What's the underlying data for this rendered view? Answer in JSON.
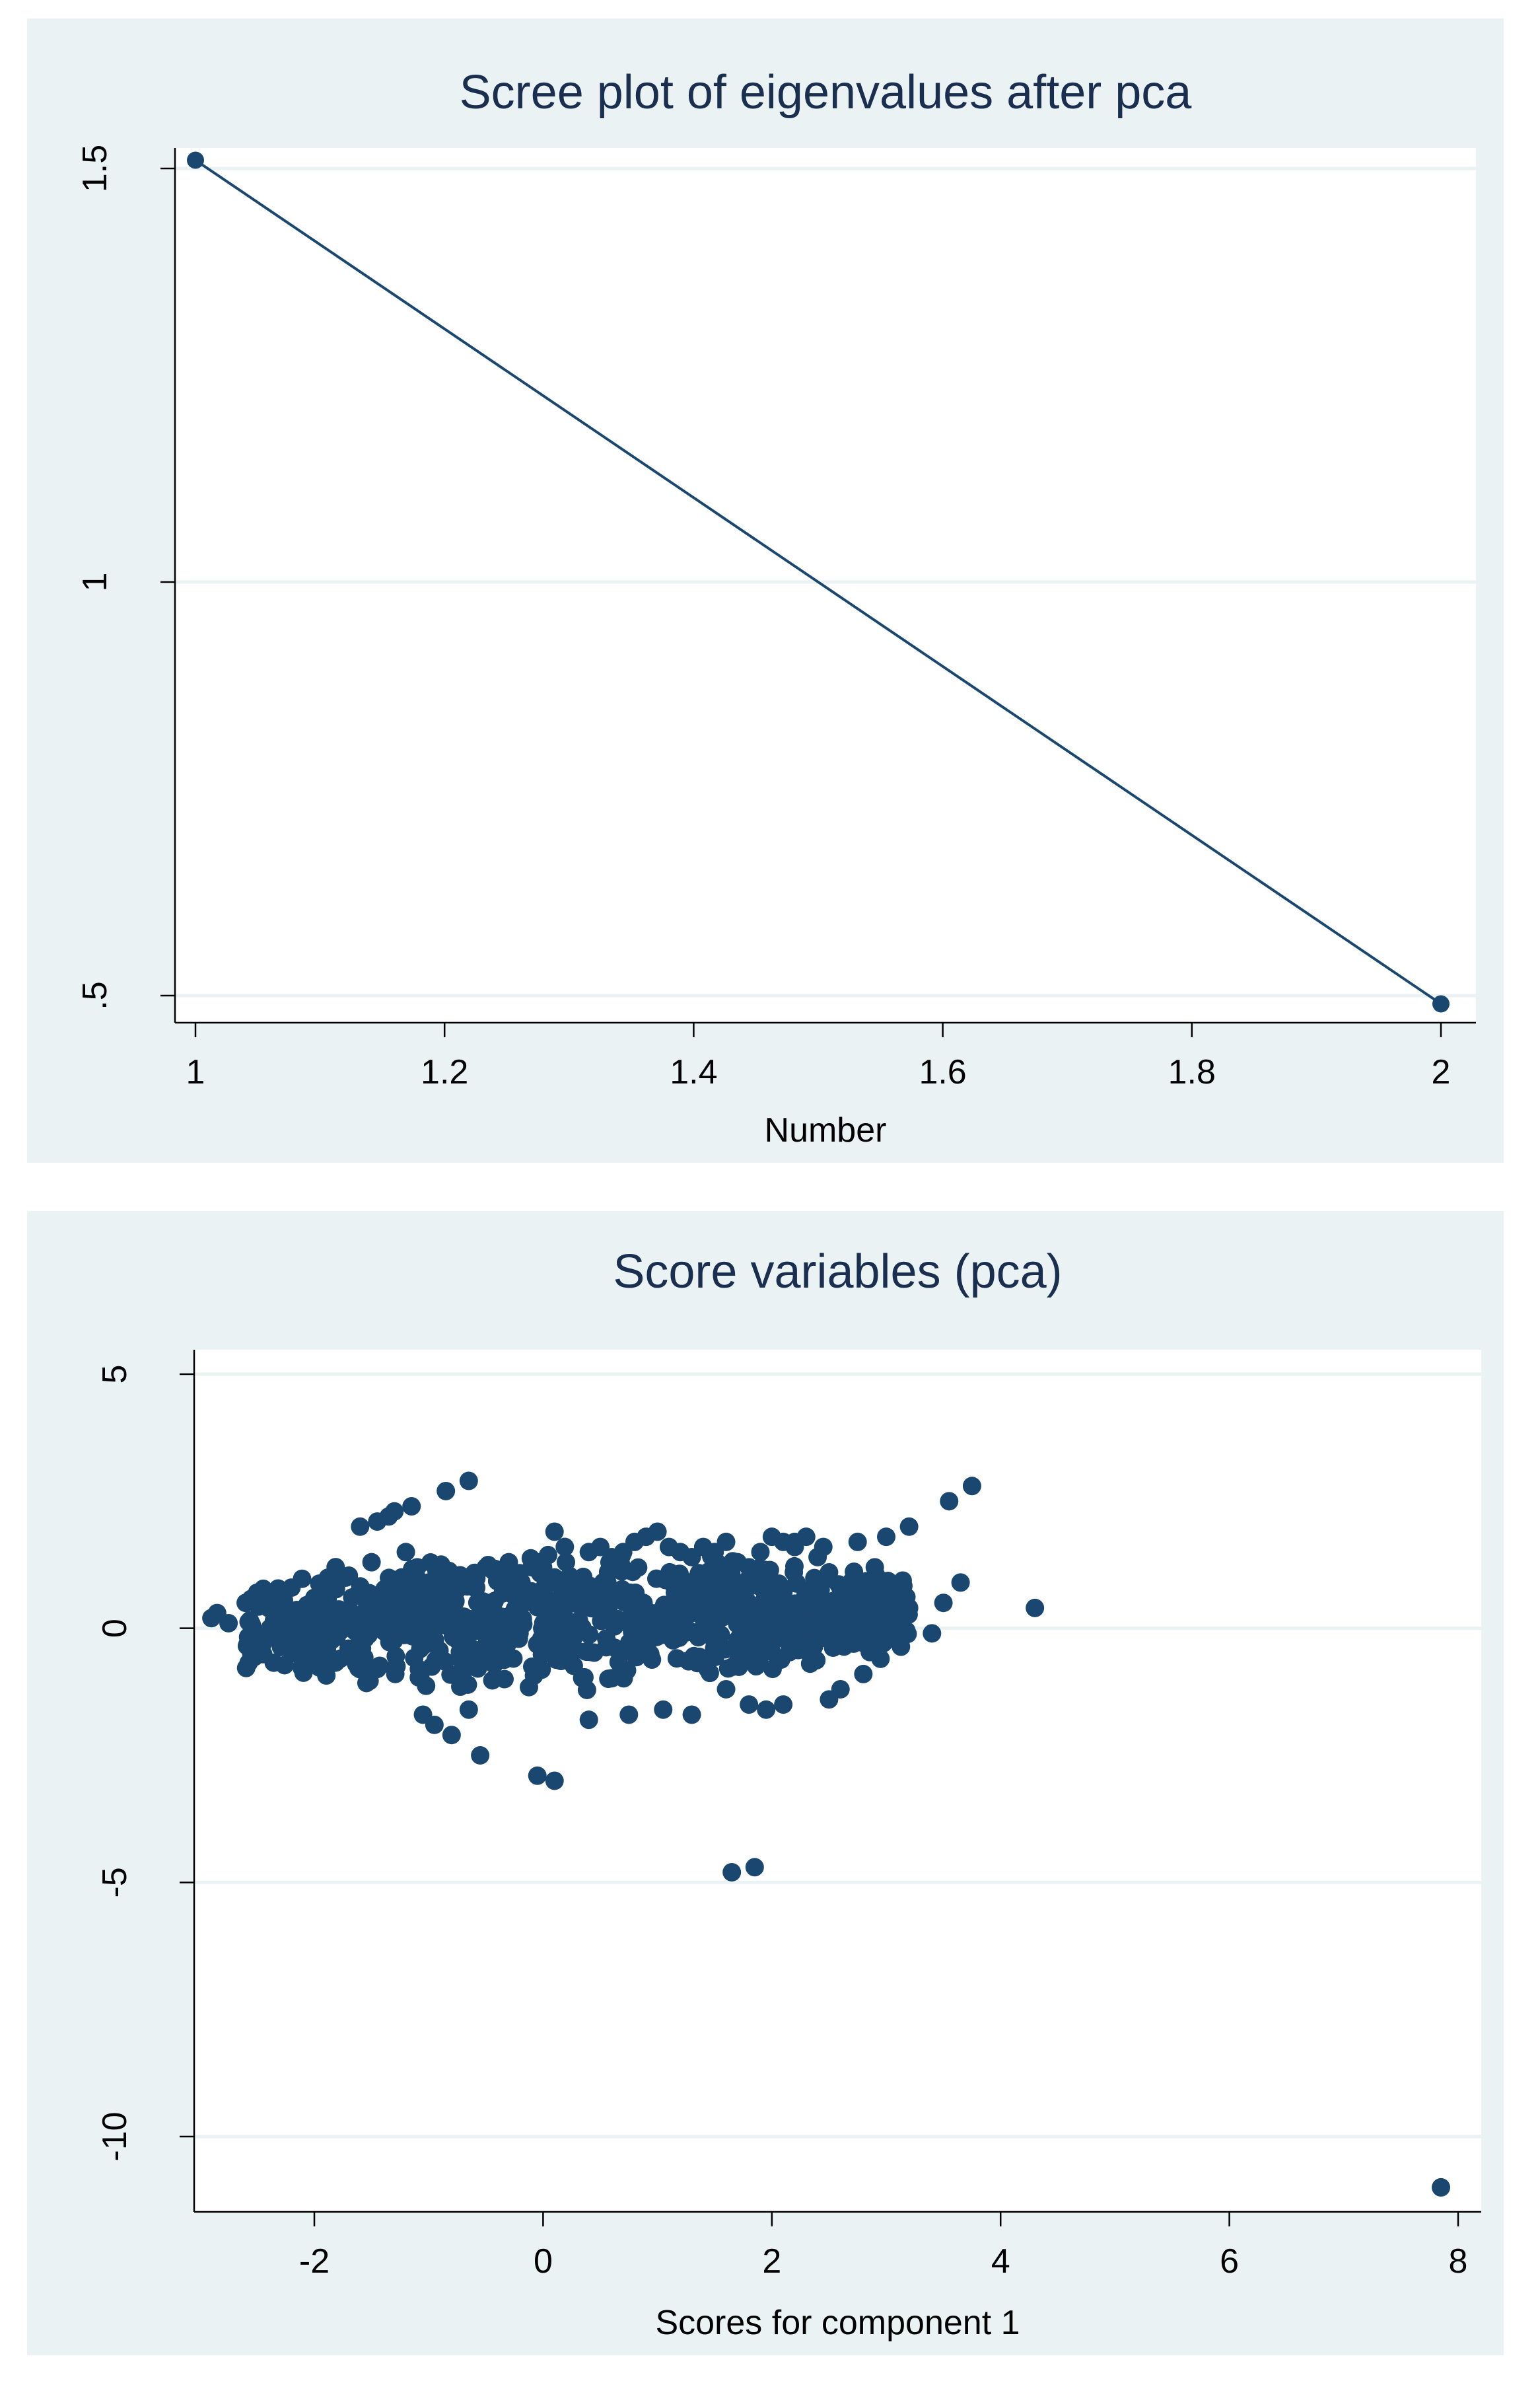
{
  "chart_data": [
    {
      "type": "line",
      "title": "Scree plot of eigenvalues after pca",
      "xlabel": "Number",
      "ylabel": "",
      "xlim": [
        1,
        2
      ],
      "ylim": [
        0.5,
        1.5
      ],
      "xticks": [
        "1",
        "1.2",
        "1.4",
        "1.6",
        "1.8",
        "2"
      ],
      "yticks": [
        ".5",
        "1",
        "1.5"
      ],
      "grid": true,
      "series": [
        {
          "x": [
            1,
            2
          ],
          "y": [
            1.51,
            0.49
          ],
          "color": "#1a476f",
          "markers": true
        }
      ]
    },
    {
      "type": "scatter",
      "title": "Score variables (pca)",
      "xlabel": "Scores for component 1",
      "ylabel": "",
      "xlim": [
        -3,
        8
      ],
      "ylim": [
        -11,
        5
      ],
      "xticks": [
        "-2",
        "0",
        "2",
        "4",
        "6",
        "8"
      ],
      "yticks": [
        "-10",
        "-5",
        "0",
        "5"
      ],
      "grid": true,
      "dense_cluster": {
        "x_range": [
          -2.6,
          3.2
        ],
        "y_range": [
          -1.5,
          1.6
        ],
        "description_count": 900
      },
      "series": [
        {
          "color": "#1a476f",
          "x": [
            -2.9,
            -2.85,
            -2.75,
            -2.6,
            -2.5,
            -2.55,
            -2.4,
            -2.3,
            -2.2,
            -2.1,
            -2.0,
            -1.9,
            -1.8,
            -1.7,
            -1.6,
            -1.5,
            -1.45,
            -1.4,
            -1.3,
            -1.2,
            -1.1,
            -1.0,
            -0.9,
            -0.8,
            -0.7,
            -0.6,
            -0.5,
            -0.4,
            -0.3,
            -0.2,
            -0.1,
            0.0,
            0.1,
            0.2,
            0.3,
            0.4,
            0.5,
            0.6,
            0.7,
            0.8,
            0.9,
            1.0,
            1.1,
            1.2,
            1.3,
            1.4,
            1.5,
            1.6,
            1.7,
            1.8,
            1.9,
            2.0,
            2.1,
            2.2,
            2.3,
            2.4,
            2.5,
            2.6,
            2.7,
            2.8,
            2.9,
            3.0,
            3.1,
            3.2,
            -1.6,
            -1.45,
            -1.35,
            -1.3,
            -1.15,
            -0.85,
            -0.65,
            0.1,
            2.2,
            2.45,
            2.75,
            3.0,
            3.2,
            3.55,
            3.75,
            3.65,
            4.3,
            3.5,
            3.4,
            3.0,
            2.85,
            0.05,
            -1.05,
            -0.95,
            -0.8,
            -0.65,
            -0.55,
            -0.05,
            0.1,
            0.4,
            0.75,
            1.05,
            1.3,
            1.6,
            1.8,
            1.95,
            2.1,
            2.5,
            2.6,
            2.8,
            2.95,
            1.65,
            1.85,
            7.85
          ],
          "y": [
            0.2,
            0.3,
            0.1,
            0.5,
            0.7,
            -0.6,
            0.4,
            0.2,
            0.8,
            -0.2,
            0.6,
            0.5,
            0.9,
            -0.4,
            -0.3,
            1.3,
            -0.8,
            0.1,
            0.8,
            1.5,
            1.2,
            0.9,
            1.1,
            0.6,
            1.0,
            0.8,
            1.2,
            1.1,
            1.3,
            0.7,
            1.2,
            1.2,
            1.0,
            1.3,
            0.9,
            1.5,
            1.6,
            1.4,
            1.5,
            1.7,
            1.8,
            1.9,
            1.6,
            1.5,
            1.4,
            1.6,
            1.5,
            1.7,
            1.3,
            1.2,
            1.5,
            1.8,
            1.7,
            1.6,
            1.8,
            1.4,
            1.1,
            0.8,
            0.7,
            0.9,
            1.2,
            0.5,
            0.6,
            0.4,
            2.0,
            2.1,
            2.2,
            2.3,
            2.4,
            2.7,
            2.9,
            1.9,
            1.7,
            1.6,
            1.7,
            1.8,
            2.0,
            2.5,
            2.8,
            0.9,
            0.4,
            0.5,
            -0.1,
            0.0,
            -0.2,
            -0.3,
            -1.7,
            -1.9,
            -2.1,
            -1.6,
            -2.5,
            -2.9,
            -3.0,
            -1.8,
            -1.7,
            -1.6,
            -1.7,
            -1.2,
            -1.5,
            -1.6,
            -1.5,
            -1.4,
            -1.2,
            -0.9,
            -0.6,
            -4.8,
            -4.7,
            -11.0
          ]
        }
      ]
    }
  ]
}
